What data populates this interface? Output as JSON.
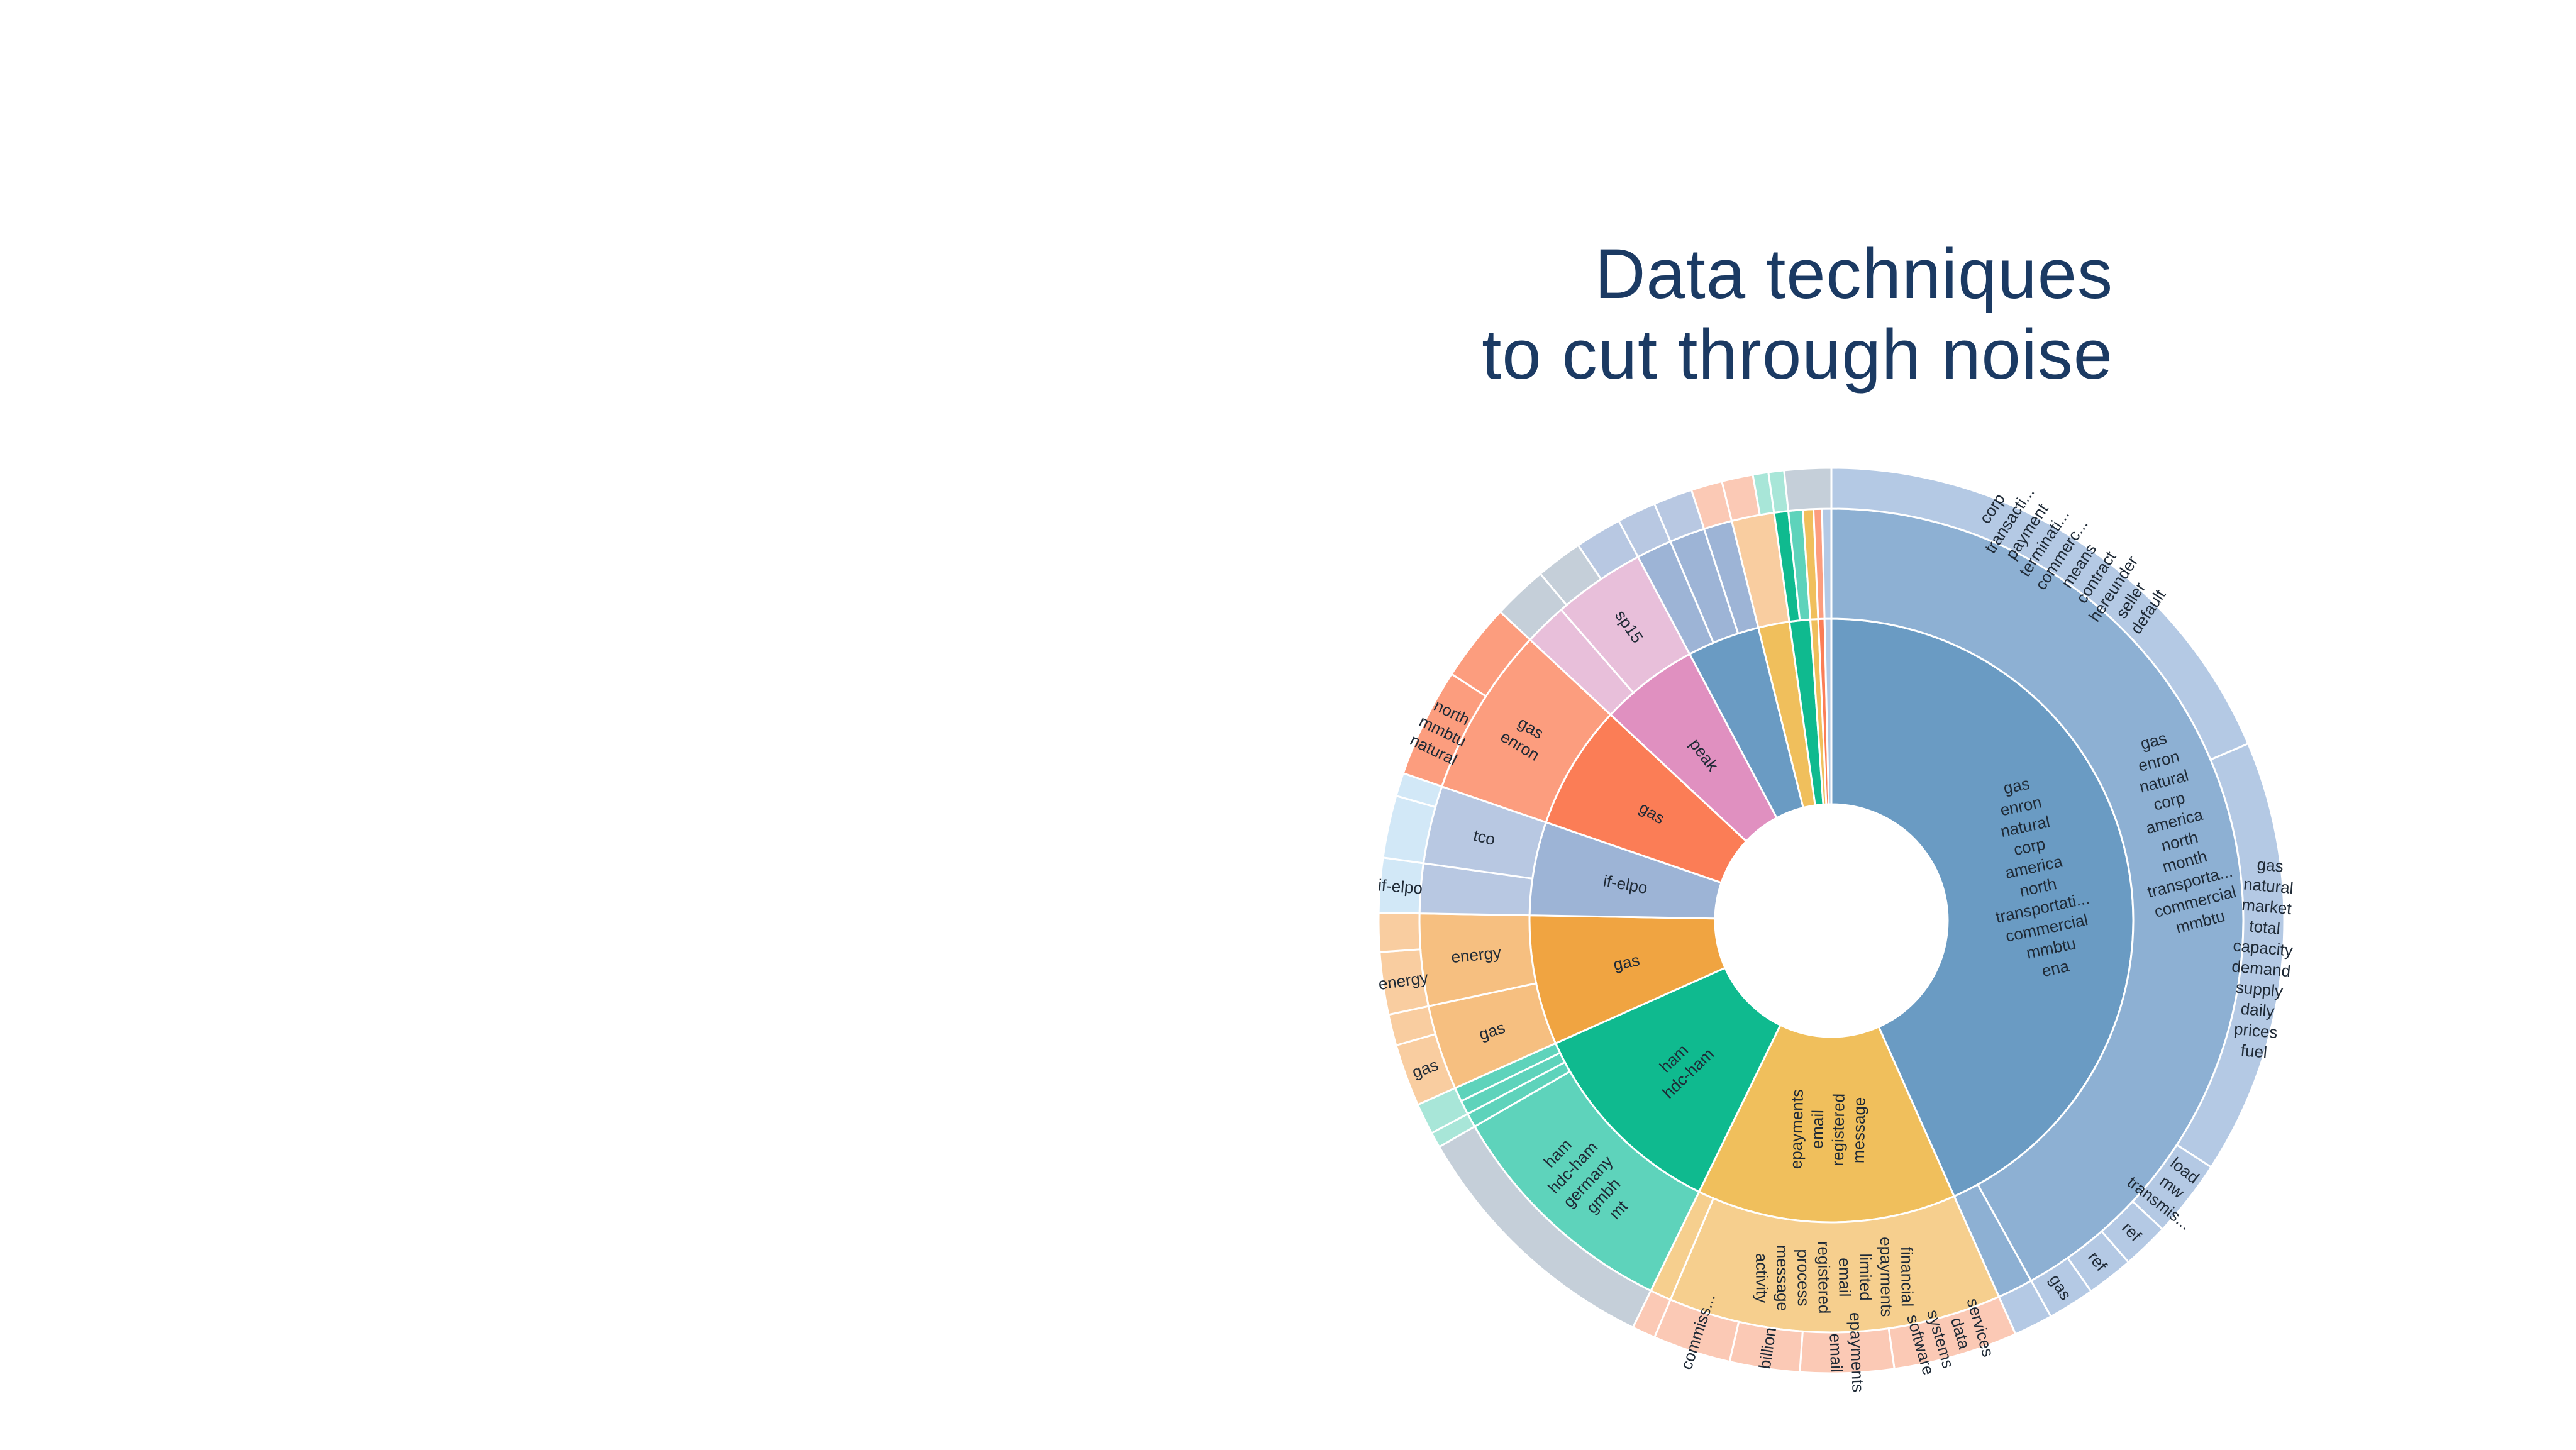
{
  "headline": {
    "line1": "Data techniques",
    "line2": "to cut through noise"
  },
  "chart_data": {
    "type": "sunburst",
    "title": "",
    "levels": 3,
    "colors": {
      "blue": "#6a9bc3",
      "blue_mid": "#8db0d3",
      "blue_light": "#b4c9e4",
      "yellow": "#f0bf5c",
      "yellow_light": "#f6cf8e",
      "peach": "#fbc9b5",
      "green": "#0fba8f",
      "green_light": "#5ed3bb",
      "green_pale": "#a8e6d8",
      "orange": "#f0a441",
      "orange_light": "#f6bf80",
      "orange_pale": "#f9cda0",
      "coral": "#fb7d56",
      "coral_light": "#fc9d7e",
      "pink": "#e090c0",
      "pink_light": "#e8bfda",
      "slate": "#9db4d6",
      "slate_light": "#b8c8e2",
      "sky": "#d2e8f7",
      "gray": "#c5cfd9"
    },
    "nodes": [
      {
        "id": "c1",
        "ring": 1,
        "start": 0,
        "end": 156,
        "color": "blue",
        "labels": [
          "gas",
          "enron",
          "natural",
          "corp",
          "america",
          "north",
          "transportati...",
          "commercial",
          "mmbtu",
          "ena"
        ]
      },
      {
        "id": "c2",
        "ring": 1,
        "start": 156,
        "end": 206,
        "color": "yellow",
        "labels": [
          "epayments",
          "email",
          "registered",
          "message"
        ]
      },
      {
        "id": "c3",
        "ring": 1,
        "start": 206,
        "end": 246,
        "color": "green",
        "labels": [
          "ham",
          "hdc-ham"
        ]
      },
      {
        "id": "c4",
        "ring": 1,
        "start": 246,
        "end": 271,
        "color": "orange",
        "labels": [
          "gas"
        ]
      },
      {
        "id": "c5",
        "ring": 1,
        "start": 271,
        "end": 289,
        "color": "slate",
        "labels": [
          "if-elpo"
        ]
      },
      {
        "id": "c6",
        "ring": 1,
        "start": 289,
        "end": 313,
        "color": "coral",
        "labels": [
          "gas"
        ]
      },
      {
        "id": "c7",
        "ring": 1,
        "start": 313,
        "end": 332,
        "color": "pink",
        "labels": [
          "peak"
        ]
      },
      {
        "id": "c8",
        "ring": 1,
        "start": 332,
        "end": 346,
        "color": "blue",
        "labels": []
      },
      {
        "id": "c9",
        "ring": 1,
        "start": 346,
        "end": 352,
        "color": "yellow",
        "labels": []
      },
      {
        "id": "c10",
        "ring": 1,
        "start": 352,
        "end": 356,
        "color": "green",
        "labels": []
      },
      {
        "id": "c11",
        "ring": 1,
        "start": 356,
        "end": 357.5,
        "color": "yellow",
        "labels": []
      },
      {
        "id": "c12",
        "ring": 1,
        "start": 357.5,
        "end": 358.7,
        "color": "coral",
        "labels": []
      },
      {
        "id": "c13",
        "ring": 1,
        "start": 358.7,
        "end": 360,
        "color": "blue_light",
        "labels": []
      },
      {
        "id": "m1",
        "ring": 2,
        "start": 0,
        "end": 151,
        "color": "blue_mid",
        "labels": [
          "gas",
          "enron",
          "natural",
          "corp",
          "america",
          "north",
          "month",
          "transporta...",
          "commercial",
          "mmbtu"
        ]
      },
      {
        "id": "m2",
        "ring": 2,
        "start": 151,
        "end": 156,
        "color": "blue_mid",
        "labels": []
      },
      {
        "id": "m3",
        "ring": 2,
        "start": 156,
        "end": 203,
        "color": "yellow_light",
        "labels": [
          "financial",
          "epayments",
          "limited",
          "email",
          "registered",
          "process",
          "message",
          "activity"
        ]
      },
      {
        "id": "m4",
        "ring": 2,
        "start": 203,
        "end": 206,
        "color": "yellow_light",
        "labels": []
      },
      {
        "id": "m5",
        "ring": 2,
        "start": 206,
        "end": 240,
        "color": "green_light",
        "labels": [
          "ham",
          "hdc-ham",
          "germany",
          "gmbh",
          "mt"
        ]
      },
      {
        "id": "m6",
        "ring": 2,
        "start": 240,
        "end": 242,
        "color": "green_light",
        "labels": []
      },
      {
        "id": "m7",
        "ring": 2,
        "start": 242,
        "end": 244,
        "color": "green_light",
        "labels": []
      },
      {
        "id": "m8",
        "ring": 2,
        "start": 244,
        "end": 246,
        "color": "green_light",
        "labels": []
      },
      {
        "id": "m9",
        "ring": 2,
        "start": 246,
        "end": 258,
        "color": "orange_light",
        "labels": [
          "gas"
        ]
      },
      {
        "id": "m10",
        "ring": 2,
        "start": 258,
        "end": 271,
        "color": "orange_light",
        "labels": [
          "energy"
        ]
      },
      {
        "id": "m11",
        "ring": 2,
        "start": 271,
        "end": 278,
        "color": "slate_light",
        "labels": []
      },
      {
        "id": "m12",
        "ring": 2,
        "start": 278,
        "end": 289,
        "color": "slate_light",
        "labels": [
          "tco"
        ]
      },
      {
        "id": "m13",
        "ring": 2,
        "start": 289,
        "end": 313,
        "color": "coral_light",
        "labels": [
          "gas",
          "enron"
        ]
      },
      {
        "id": "m14",
        "ring": 2,
        "start": 313,
        "end": 319,
        "color": "pink_light",
        "labels": []
      },
      {
        "id": "m15",
        "ring": 2,
        "start": 319,
        "end": 332,
        "color": "pink_light",
        "labels": [
          "sp15"
        ]
      },
      {
        "id": "m16",
        "ring": 2,
        "start": 332,
        "end": 337,
        "color": "slate",
        "labels": []
      },
      {
        "id": "m17",
        "ring": 2,
        "start": 337,
        "end": 342,
        "color": "slate",
        "labels": []
      },
      {
        "id": "m18",
        "ring": 2,
        "start": 342,
        "end": 346,
        "color": "slate",
        "labels": []
      },
      {
        "id": "m19",
        "ring": 2,
        "start": 346,
        "end": 352,
        "color": "orange_pale",
        "labels": []
      },
      {
        "id": "m20",
        "ring": 2,
        "start": 352,
        "end": 354,
        "color": "green",
        "labels": []
      },
      {
        "id": "m21",
        "ring": 2,
        "start": 354,
        "end": 356,
        "color": "green_light",
        "labels": []
      },
      {
        "id": "m22",
        "ring": 2,
        "start": 356,
        "end": 357.5,
        "color": "yellow",
        "labels": []
      },
      {
        "id": "m23",
        "ring": 2,
        "start": 357.5,
        "end": 358.7,
        "color": "coral_light",
        "labels": []
      },
      {
        "id": "m24",
        "ring": 2,
        "start": 358.7,
        "end": 360,
        "color": "blue_light",
        "labels": []
      },
      {
        "id": "o1",
        "ring": 3,
        "start": 0,
        "end": 67,
        "color": "blue_light",
        "labels": [
          "corp",
          "transacti...",
          "payment",
          "terminati...",
          "commerc...",
          "means",
          "contract",
          "hereunder",
          "seller",
          "default"
        ]
      },
      {
        "id": "o2",
        "ring": 3,
        "start": 67,
        "end": 123,
        "color": "blue_light",
        "labels": [
          "gas",
          "natural",
          "market",
          "total",
          "capacity",
          "demand",
          "supply",
          "daily",
          "prices",
          "fuel"
        ]
      },
      {
        "id": "o3",
        "ring": 3,
        "start": 123,
        "end": 133,
        "color": "blue_light",
        "labels": [
          "load",
          "mw",
          "transmis..."
        ]
      },
      {
        "id": "o4",
        "ring": 3,
        "start": 133,
        "end": 139,
        "color": "blue_light",
        "labels": [
          "ref"
        ]
      },
      {
        "id": "o5",
        "ring": 3,
        "start": 139,
        "end": 145,
        "color": "blue_light",
        "labels": [
          "ref"
        ]
      },
      {
        "id": "o6",
        "ring": 3,
        "start": 145,
        "end": 151,
        "color": "blue_light",
        "labels": [
          "gas"
        ]
      },
      {
        "id": "o7",
        "ring": 3,
        "start": 151,
        "end": 156,
        "color": "blue_light",
        "labels": []
      },
      {
        "id": "o8",
        "ring": 3,
        "start": 156,
        "end": 172,
        "color": "peach",
        "labels": [
          "services",
          "data",
          "systems",
          "software"
        ]
      },
      {
        "id": "o9",
        "ring": 3,
        "start": 172,
        "end": 184,
        "color": "peach",
        "labels": [
          "epayments",
          "email"
        ]
      },
      {
        "id": "o10",
        "ring": 3,
        "start": 184,
        "end": 193,
        "color": "peach",
        "labels": [
          "billion"
        ]
      },
      {
        "id": "o11",
        "ring": 3,
        "start": 193,
        "end": 203,
        "color": "peach",
        "labels": [
          "commiss..."
        ]
      },
      {
        "id": "o12",
        "ring": 3,
        "start": 203,
        "end": 206,
        "color": "peach",
        "labels": []
      },
      {
        "id": "o13",
        "ring": 3,
        "start": 206,
        "end": 240,
        "color": "gray",
        "labels": []
      },
      {
        "id": "o14",
        "ring": 3,
        "start": 240,
        "end": 242,
        "color": "green_pale",
        "labels": []
      },
      {
        "id": "o15",
        "ring": 3,
        "start": 242,
        "end": 246,
        "color": "green_pale",
        "labels": []
      },
      {
        "id": "o16",
        "ring": 3,
        "start": 246,
        "end": 254,
        "color": "orange_pale",
        "labels": [
          "gas"
        ]
      },
      {
        "id": "o17",
        "ring": 3,
        "start": 254,
        "end": 258,
        "color": "orange_pale",
        "labels": []
      },
      {
        "id": "o18",
        "ring": 3,
        "start": 258,
        "end": 266,
        "color": "orange_pale",
        "labels": [
          "energy"
        ]
      },
      {
        "id": "o19",
        "ring": 3,
        "start": 266,
        "end": 271,
        "color": "orange_pale",
        "labels": []
      },
      {
        "id": "o20",
        "ring": 3,
        "start": 271,
        "end": 278,
        "color": "sky",
        "labels": [
          "if-elpo"
        ]
      },
      {
        "id": "o21",
        "ring": 3,
        "start": 278,
        "end": 286,
        "color": "sky",
        "labels": []
      },
      {
        "id": "o22",
        "ring": 3,
        "start": 286,
        "end": 289,
        "color": "sky",
        "labels": []
      },
      {
        "id": "o23",
        "ring": 3,
        "start": 289,
        "end": 303,
        "color": "coral_light",
        "labels": [
          "north",
          "mmbtu",
          "natural"
        ]
      },
      {
        "id": "o24",
        "ring": 3,
        "start": 303,
        "end": 313,
        "color": "coral_light",
        "labels": []
      },
      {
        "id": "o25",
        "ring": 3,
        "start": 313,
        "end": 320,
        "color": "gray",
        "labels": []
      },
      {
        "id": "o26",
        "ring": 3,
        "start": 320,
        "end": 326,
        "color": "gray",
        "labels": []
      },
      {
        "id": "o27",
        "ring": 3,
        "start": 326,
        "end": 332,
        "color": "slate_light",
        "labels": []
      },
      {
        "id": "o28",
        "ring": 3,
        "start": 332,
        "end": 337,
        "color": "slate_light",
        "labels": []
      },
      {
        "id": "o29",
        "ring": 3,
        "start": 337,
        "end": 342,
        "color": "slate_light",
        "labels": []
      },
      {
        "id": "o30",
        "ring": 3,
        "start": 342,
        "end": 346,
        "color": "peach",
        "labels": []
      },
      {
        "id": "o31",
        "ring": 3,
        "start": 346,
        "end": 350,
        "color": "peach",
        "labels": []
      },
      {
        "id": "o32",
        "ring": 3,
        "start": 350,
        "end": 352,
        "color": "green_pale",
        "labels": []
      },
      {
        "id": "o33",
        "ring": 3,
        "start": 352,
        "end": 354,
        "color": "green_pale",
        "labels": []
      },
      {
        "id": "o34",
        "ring": 3,
        "start": 354,
        "end": 360,
        "color": "gray",
        "labels": []
      }
    ]
  }
}
